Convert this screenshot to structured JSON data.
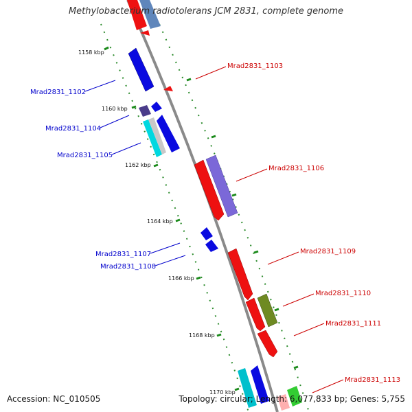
{
  "title": "Methylobacterium radiotolerans JCM 2831, complete genome",
  "footer": {
    "accession": "Accession: NC_010505",
    "summary": "Topology: circular; Length: 6,077,833 bp; Genes: 5,755"
  },
  "colors": {
    "backbone": "#808080",
    "tick": "#1a8a1a",
    "forward_label": "#cc0000",
    "reverse_label": "#0000cc"
  },
  "ticks": [
    "1158 kbp",
    "1160 kbp",
    "1162 kbp",
    "1164 kbp",
    "1166 kbp",
    "1168 kbp",
    "1170 kbp"
  ],
  "gene_labels": {
    "reverse": [
      "Mrad2831_1102",
      "Mrad2831_1104",
      "Mrad2831_1105",
      "Mrad2831_1107",
      "Mrad2831_1108"
    ],
    "forward": [
      "Mrad2831_1103",
      "Mrad2831_1106",
      "Mrad2831_1109",
      "Mrad2831_1110",
      "Mrad2831_1111",
      "Mrad2831_1113"
    ]
  }
}
